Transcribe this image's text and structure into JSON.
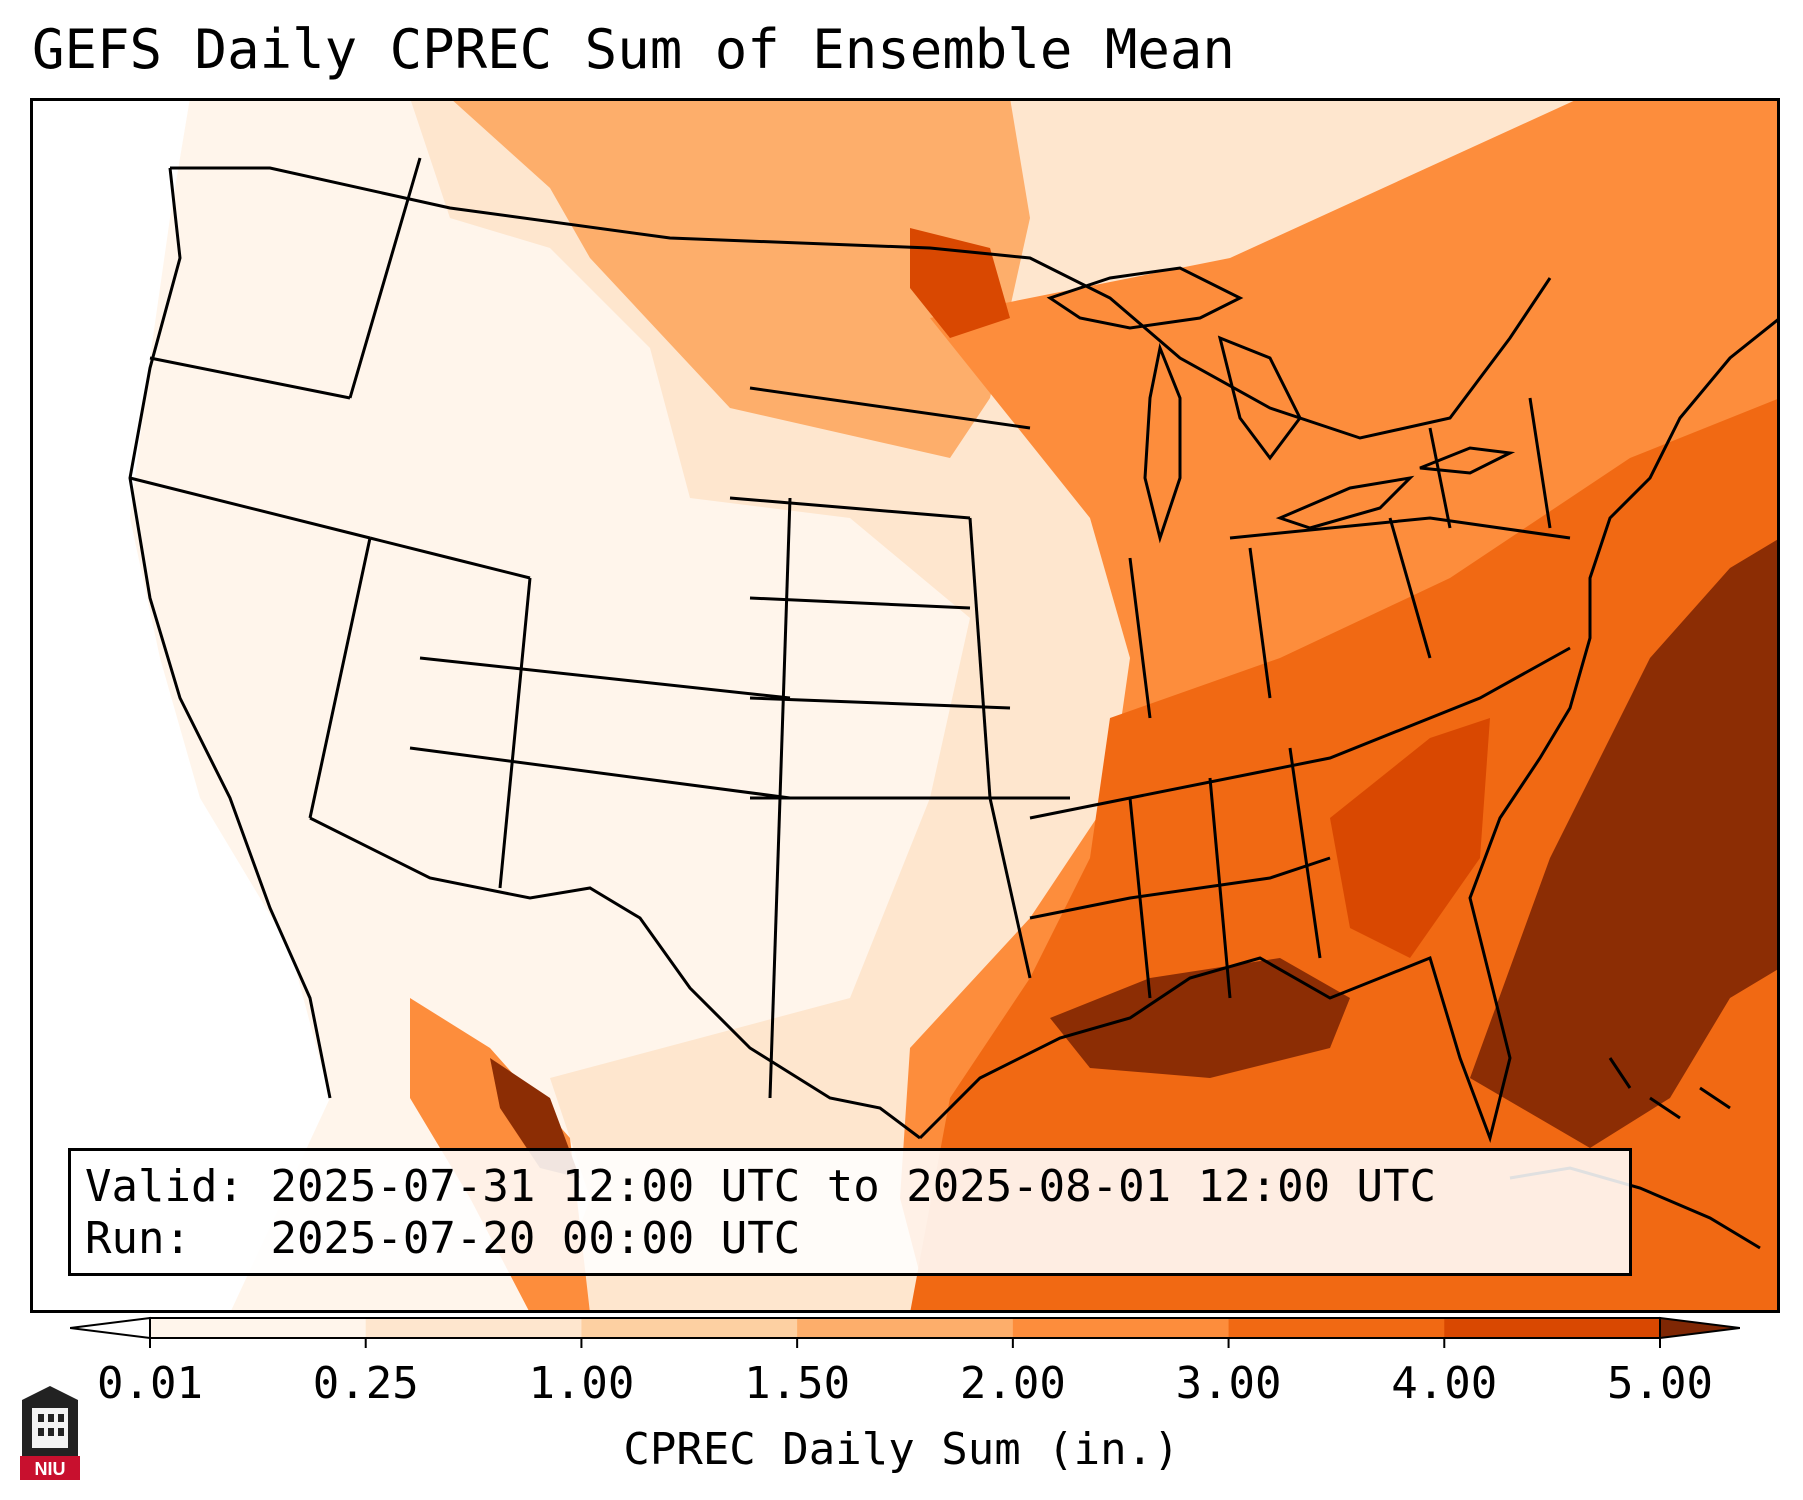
{
  "title": "GEFS Daily CPREC Sum of Ensemble Mean",
  "valid_label": "Valid:",
  "valid_value": "2025-07-31 12:00 UTC to 2025-08-01 12:00 UTC",
  "run_label": "Run:",
  "run_value": "2025-07-20 00:00 UTC",
  "colorbar": {
    "label": "CPREC Daily Sum (in.)",
    "ticks": [
      "0.01",
      "0.25",
      "1.00",
      "1.50",
      "2.00",
      "3.00",
      "4.00",
      "5.00"
    ],
    "colors": [
      "#fff5eb",
      "#fee6ce",
      "#fdd0a2",
      "#fdae6b",
      "#fd8d3c",
      "#f16913",
      "#d94801",
      "#8c2d04"
    ],
    "under_color": "#ffffff",
    "over_color": "#7f2704"
  },
  "logo_text": "NIU"
}
